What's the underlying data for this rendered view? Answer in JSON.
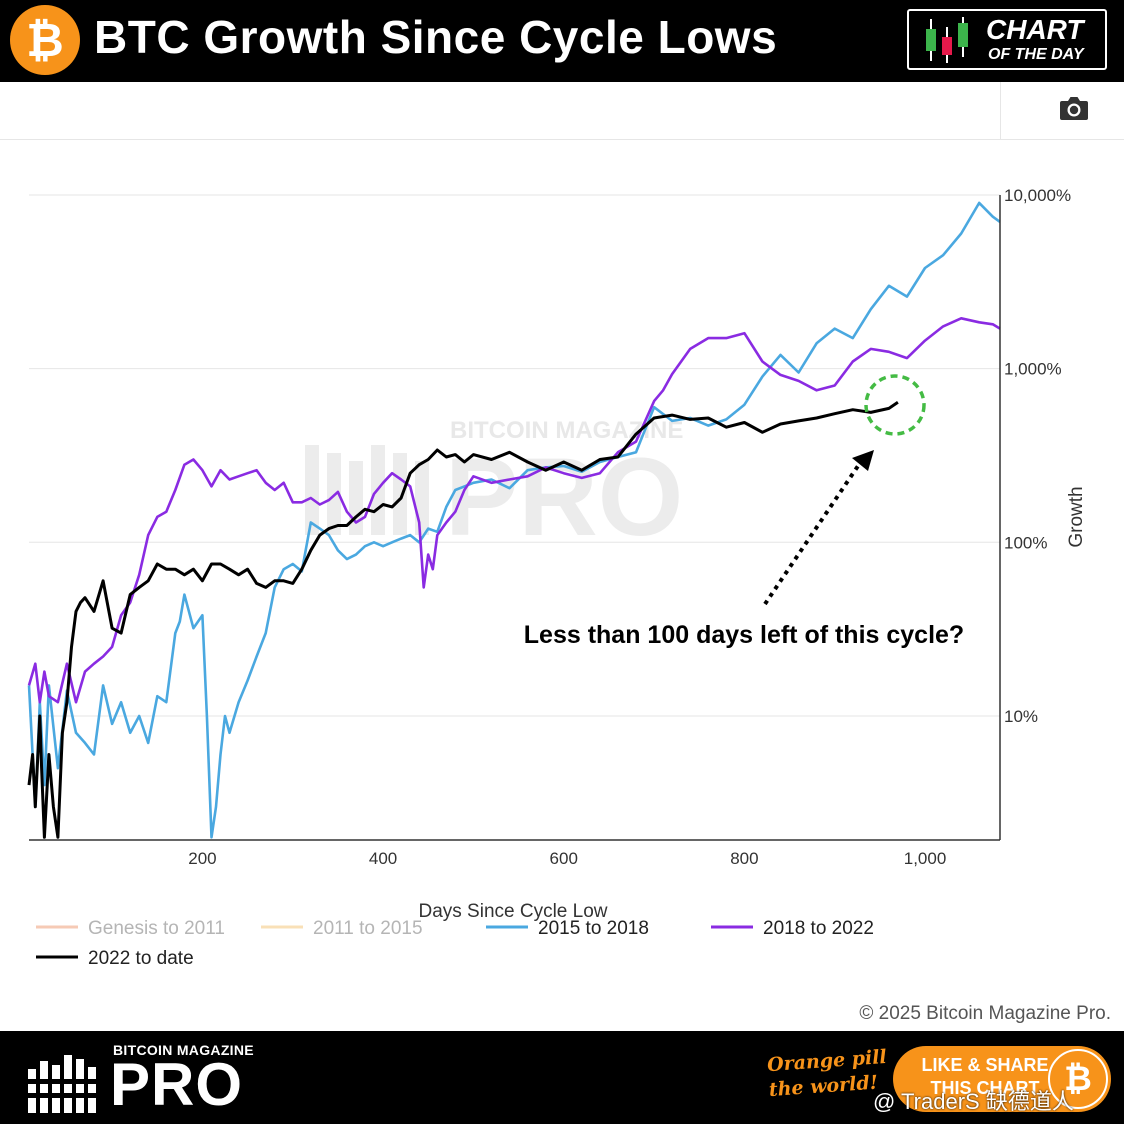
{
  "header": {
    "logo_symbol": "₿",
    "title": "BTC Growth Since Cycle Lows",
    "badge_main": "CHART",
    "badge_sub": "OF THE DAY",
    "badge_icon": "candlestick-icon"
  },
  "toolbar": {
    "camera_icon": "camera-icon"
  },
  "watermark_bg": "BITCOIN MAGAZINE PRO",
  "chart_data": {
    "type": "line",
    "title": "BTC Growth Since Cycle Lows",
    "xlabel": "Days Since Cycle Low",
    "ylabel": "Growth",
    "xlim": [
      8,
      1083
    ],
    "ylim_log10_percent": [
      0.2857,
      4.0
    ],
    "y_scale": "log",
    "x_ticks": [
      200,
      400,
      600,
      800,
      1000
    ],
    "x_tick_labels": [
      "200",
      "400",
      "600",
      "800",
      "1,000"
    ],
    "y_ticks": [
      10,
      100,
      1000,
      10000
    ],
    "y_tick_labels": [
      "10%",
      "100%",
      "1,000%",
      "10,000%"
    ],
    "grid": true,
    "legend_position": "bottom",
    "annotation": "Less than 100 days left of this cycle?",
    "colors": {
      "genesis": "#f0a07a",
      "c2011": "#f5c77e",
      "c2015": "#4aa8e0",
      "c2018": "#8a2be2",
      "c2022": "#000000",
      "circle": "#44bb44"
    },
    "series": [
      {
        "name": "Genesis to 2011",
        "color": "#f0a07a",
        "visible": false,
        "x": [],
        "y": []
      },
      {
        "name": "2011 to 2015",
        "color": "#f5c77e",
        "visible": false,
        "x": [],
        "y": []
      },
      {
        "name": "2015 to 2018",
        "color": "#4aa8e0",
        "visible": true,
        "x": [
          8,
          15,
          20,
          25,
          30,
          40,
          50,
          60,
          70,
          80,
          90,
          100,
          110,
          120,
          130,
          140,
          150,
          160,
          170,
          175,
          180,
          190,
          200,
          205,
          210,
          215,
          220,
          225,
          230,
          240,
          250,
          260,
          270,
          280,
          290,
          300,
          310,
          320,
          330,
          340,
          350,
          360,
          370,
          380,
          390,
          400,
          410,
          420,
          430,
          440,
          450,
          460,
          470,
          480,
          490,
          500,
          520,
          540,
          560,
          580,
          600,
          620,
          640,
          660,
          680,
          700,
          720,
          740,
          760,
          780,
          800,
          820,
          840,
          860,
          880,
          900,
          920,
          940,
          960,
          980,
          1000,
          1020,
          1040,
          1060,
          1075,
          1083
        ],
        "y": [
          15,
          3,
          12,
          4,
          15,
          5,
          14,
          8,
          7,
          6,
          15,
          9,
          12,
          8,
          10,
          7,
          13,
          12,
          30,
          35,
          50,
          32,
          38,
          10,
          2,
          3,
          6,
          10,
          8,
          12,
          16,
          22,
          30,
          55,
          70,
          75,
          68,
          130,
          120,
          110,
          90,
          80,
          85,
          95,
          100,
          95,
          100,
          105,
          110,
          100,
          120,
          115,
          160,
          200,
          210,
          220,
          230,
          205,
          260,
          270,
          275,
          255,
          290,
          310,
          330,
          600,
          500,
          520,
          470,
          510,
          620,
          900,
          1200,
          950,
          1400,
          1700,
          1500,
          2200,
          3000,
          2600,
          3800,
          4500,
          6000,
          9000,
          7500,
          7000
        ]
      },
      {
        "name": "2018 to 2022",
        "color": "#8a2be2",
        "visible": true,
        "x": [
          8,
          15,
          20,
          25,
          30,
          40,
          50,
          60,
          70,
          80,
          90,
          100,
          110,
          120,
          130,
          140,
          150,
          160,
          170,
          180,
          190,
          200,
          210,
          220,
          230,
          240,
          250,
          260,
          270,
          280,
          290,
          300,
          310,
          320,
          330,
          340,
          350,
          360,
          370,
          380,
          390,
          400,
          410,
          420,
          430,
          440,
          445,
          450,
          455,
          460,
          470,
          480,
          490,
          500,
          520,
          540,
          560,
          580,
          600,
          620,
          640,
          660,
          680,
          700,
          710,
          720,
          740,
          760,
          780,
          800,
          820,
          840,
          860,
          880,
          900,
          920,
          940,
          960,
          980,
          1000,
          1020,
          1040,
          1060,
          1075,
          1083
        ],
        "y": [
          15,
          20,
          12,
          18,
          13,
          12,
          20,
          12,
          18,
          20,
          22,
          25,
          38,
          45,
          65,
          110,
          140,
          150,
          200,
          280,
          300,
          260,
          210,
          260,
          230,
          240,
          250,
          260,
          220,
          200,
          220,
          170,
          170,
          180,
          165,
          175,
          195,
          150,
          130,
          140,
          190,
          220,
          250,
          230,
          210,
          130,
          55,
          85,
          70,
          110,
          130,
          150,
          200,
          240,
          220,
          230,
          240,
          270,
          250,
          235,
          250,
          330,
          380,
          650,
          750,
          930,
          1300,
          1500,
          1500,
          1600,
          1100,
          920,
          850,
          750,
          800,
          1100,
          1300,
          1250,
          1150,
          1450,
          1750,
          1950,
          1850,
          1800,
          1700
        ]
      },
      {
        "name": "2022 to date",
        "color": "#000000",
        "visible": true,
        "x": [
          8,
          12,
          15,
          20,
          22,
          25,
          30,
          35,
          40,
          45,
          50,
          55,
          60,
          65,
          70,
          80,
          90,
          100,
          110,
          120,
          130,
          140,
          150,
          160,
          170,
          180,
          190,
          200,
          210,
          220,
          230,
          240,
          250,
          260,
          270,
          280,
          290,
          300,
          310,
          320,
          330,
          340,
          350,
          360,
          370,
          380,
          390,
          400,
          410,
          420,
          430,
          440,
          450,
          460,
          470,
          480,
          490,
          500,
          520,
          540,
          560,
          580,
          600,
          620,
          640,
          660,
          680,
          700,
          720,
          740,
          760,
          780,
          800,
          820,
          840,
          860,
          880,
          900,
          920,
          940,
          960,
          970
        ],
        "y": [
          4,
          6,
          3,
          10,
          5,
          2,
          6,
          3,
          2,
          8,
          12,
          25,
          40,
          45,
          48,
          40,
          60,
          32,
          30,
          50,
          55,
          60,
          75,
          70,
          70,
          65,
          70,
          60,
          75,
          75,
          70,
          65,
          70,
          58,
          55,
          60,
          60,
          58,
          70,
          90,
          110,
          120,
          125,
          125,
          140,
          155,
          150,
          165,
          160,
          180,
          250,
          280,
          300,
          340,
          310,
          320,
          290,
          320,
          300,
          330,
          290,
          260,
          290,
          260,
          300,
          310,
          420,
          520,
          540,
          510,
          520,
          460,
          490,
          430,
          480,
          500,
          520,
          550,
          580,
          560,
          590,
          640
        ]
      }
    ]
  },
  "legend": [
    {
      "label": "Genesis to 2011",
      "color": "#f0a07a",
      "active": false
    },
    {
      "label": "2011 to 2015",
      "color": "#f5c77e",
      "active": false
    },
    {
      "label": "2015 to 2018",
      "color": "#4aa8e0",
      "active": true
    },
    {
      "label": "2018 to 2022",
      "color": "#8a2be2",
      "active": true
    },
    {
      "label": "2022 to date",
      "color": "#000000",
      "active": true
    }
  ],
  "credit": "© 2025 Bitcoin Magazine Pro.",
  "footer": {
    "brand_small": "BITCOIN MAGAZINE",
    "brand_big": "PRO",
    "tagline_line1": "Orange pill",
    "tagline_line2": "the world!",
    "share_line1": "LIKE & SHARE",
    "share_line2": "THIS CHART",
    "share_symbol": "₿",
    "overlay_watermark": "@ TraderS 缺德道人"
  }
}
